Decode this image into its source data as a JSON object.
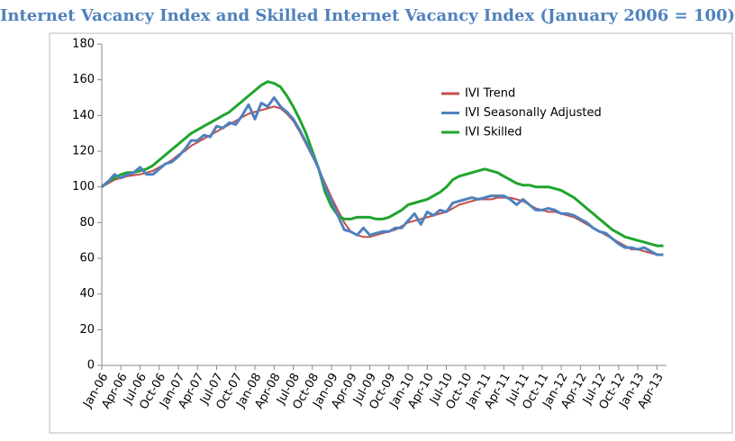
{
  "chart_data": {
    "type": "line",
    "title": "Internet Vacancy Index and Skilled Internet Vacancy Index (January 2006 = 100)",
    "categories": [
      "Jan-06",
      null,
      null,
      "Apr-06",
      null,
      null,
      "Jul-06",
      null,
      null,
      "Oct-06",
      null,
      null,
      "Jan-07",
      null,
      null,
      "Apr-07",
      null,
      null,
      "Jul-07",
      null,
      null,
      "Oct-07",
      null,
      null,
      "Jan-08",
      null,
      null,
      "Apr-08",
      null,
      null,
      "Jul-08",
      null,
      null,
      "Oct-08",
      null,
      null,
      "Jan-09",
      null,
      null,
      "Apr-09",
      null,
      null,
      "Jul-09",
      null,
      null,
      "Oct-09",
      null,
      null,
      "Jan-10",
      null,
      null,
      "Apr-10",
      null,
      null,
      "Jul-10",
      null,
      null,
      "Oct-10",
      null,
      null,
      "Jan-11",
      null,
      null,
      "Apr-11",
      null,
      null,
      "Jul-11",
      null,
      null,
      "Oct-11",
      null,
      null,
      "Jan-12",
      null,
      null,
      "Apr-12",
      null,
      null,
      "Jul-12",
      null,
      null,
      "Oct-12",
      null,
      null,
      "Jan-13",
      null,
      null,
      "Apr-13",
      null
    ],
    "series": [
      {
        "name": "IVI Trend",
        "color": "#c0504d",
        "values": [
          100,
          102,
          104,
          105,
          106,
          106.5,
          107,
          108,
          109,
          111,
          113,
          115,
          118,
          120,
          123,
          125,
          127,
          129,
          131,
          133,
          135,
          137,
          139,
          141,
          142,
          143,
          144,
          145,
          144,
          141,
          137,
          131,
          124,
          117,
          110,
          102,
          94,
          87,
          80,
          75,
          73,
          72,
          72,
          73,
          74,
          75,
          76,
          78,
          80,
          81,
          82,
          83,
          84,
          85,
          86,
          88,
          90,
          91,
          92,
          93,
          93,
          93,
          94,
          94,
          94,
          93,
          92,
          90,
          88,
          87,
          86,
          86,
          85,
          84,
          83,
          81,
          79,
          77,
          75,
          73,
          71,
          69,
          67,
          65,
          65,
          64,
          63,
          62,
          62
        ]
      },
      {
        "name": "IVI Seasonally Adjusted",
        "color": "#4f81bd",
        "values": [
          100,
          103,
          107,
          105,
          107,
          108,
          111,
          107,
          107,
          110,
          113,
          114,
          117,
          121,
          126,
          126,
          129,
          128,
          134,
          133,
          136,
          135,
          140,
          146,
          138,
          147,
          145,
          150,
          145,
          142,
          138,
          132,
          125,
          118,
          110,
          100,
          92,
          84,
          76,
          75,
          73,
          77,
          73,
          74,
          75,
          75,
          77,
          77,
          81,
          85,
          79,
          86,
          84,
          87,
          86,
          91,
          92,
          93,
          94,
          93,
          94,
          95,
          95,
          95,
          93,
          90,
          93,
          90,
          87,
          87,
          88,
          87,
          85,
          85,
          84,
          82,
          80,
          77,
          75,
          74,
          71,
          68,
          66,
          66,
          65,
          66,
          64,
          62,
          62
        ]
      },
      {
        "name": "IVI Skilled",
        "color": "#1ea52d",
        "values": [
          100,
          103,
          105,
          107,
          108,
          108,
          109,
          110,
          112,
          115,
          118,
          121,
          124,
          127,
          130,
          132,
          134,
          136,
          138,
          140,
          142,
          145,
          148,
          151,
          154,
          157,
          159,
          158,
          156,
          151,
          145,
          138,
          130,
          120,
          110,
          97,
          89,
          84,
          82,
          82,
          83,
          83,
          83,
          82,
          82,
          83,
          85,
          87,
          90,
          91,
          92,
          93,
          95,
          97,
          100,
          104,
          106,
          107,
          108,
          109,
          110,
          109,
          108,
          106,
          104,
          102,
          101,
          101,
          100,
          100,
          100,
          99,
          98,
          96,
          94,
          91,
          88,
          85,
          82,
          79,
          76,
          74,
          72,
          71,
          70,
          69,
          68,
          67,
          67
        ]
      }
    ],
    "ylim": [
      0,
      180
    ],
    "yticks": [
      0,
      20,
      40,
      60,
      80,
      100,
      120,
      140,
      160,
      180
    ],
    "grid": false,
    "legend": "inside"
  }
}
